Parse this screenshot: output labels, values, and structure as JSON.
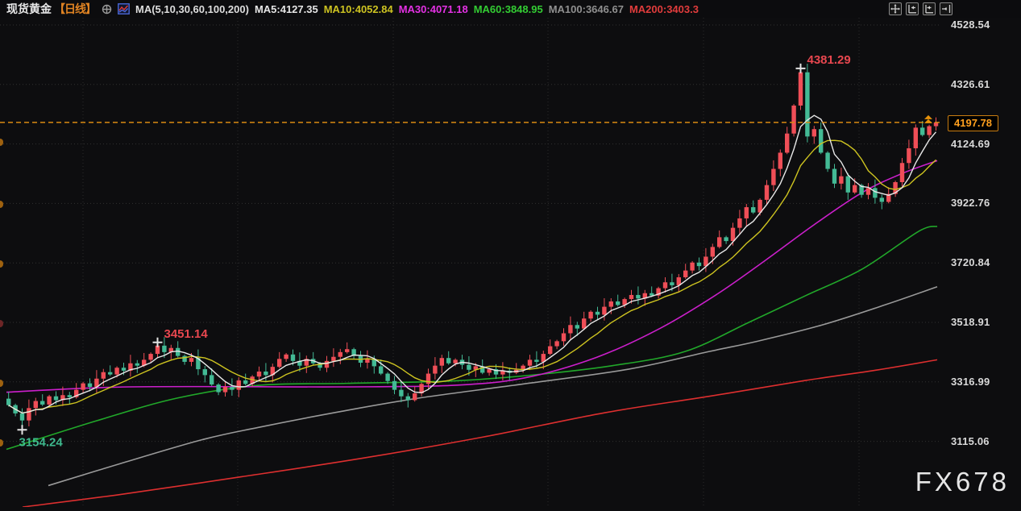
{
  "header": {
    "symbol": "现货黄金",
    "period": "【日线】",
    "ma_param_label": "MA(5,10,30,60,100,200)",
    "ma_labels": [
      {
        "text": "MA5:4127.35",
        "color": "#e6e6e6"
      },
      {
        "text": "MA10:4052.84",
        "color": "#cdc321"
      },
      {
        "text": "MA30:4071.18",
        "color": "#e431e4"
      },
      {
        "text": "MA60:3848.95",
        "color": "#33cc33"
      },
      {
        "text": "MA100:3646.67",
        "color": "#8f8f8f"
      },
      {
        "text": "MA200:3403.3",
        "color": "#e13c3c"
      }
    ]
  },
  "axis": {
    "ticks": [
      "4528.54",
      "4326.61",
      "4124.69",
      "3922.76",
      "3720.84",
      "3518.91",
      "3316.99",
      "3115.06"
    ]
  },
  "price_tag": {
    "value": "4197.78"
  },
  "watermark": "FX678",
  "chart_data": {
    "type": "candlestick",
    "title": "现货黄金 日线",
    "symbol": "现货黄金",
    "period": "日线",
    "up_color": "#ef4e57",
    "down_color": "#43ba95",
    "background": "#0d0d0f",
    "grid": true,
    "y_ticks": [
      4528.54,
      4326.61,
      4124.69,
      3922.76,
      3720.84,
      3518.91,
      3316.99,
      3115.06
    ],
    "current_price": 4197.78,
    "closes": [
      3238,
      3210,
      3186,
      3228,
      3252,
      3240,
      3268,
      3255,
      3272,
      3265,
      3290,
      3312,
      3300,
      3328,
      3350,
      3342,
      3365,
      3355,
      3380,
      3372,
      3392,
      3412,
      3440,
      3418,
      3432,
      3405,
      3385,
      3398,
      3360,
      3340,
      3308,
      3282,
      3300,
      3290,
      3322,
      3310,
      3335,
      3352,
      3340,
      3368,
      3395,
      3410,
      3388,
      3372,
      3395,
      3380,
      3365,
      3388,
      3402,
      3418,
      3428,
      3405,
      3382,
      3395,
      3370,
      3345,
      3320,
      3290,
      3268,
      3255,
      3278,
      3310,
      3345,
      3372,
      3398,
      3380,
      3392,
      3375,
      3358,
      3370,
      3348,
      3360,
      3342,
      3355,
      3348,
      3358,
      3372,
      3392,
      3385,
      3412,
      3438,
      3455,
      3482,
      3510,
      3498,
      3532,
      3555,
      3545,
      3572,
      3590,
      3578,
      3598,
      3612,
      3600,
      3618,
      3610,
      3635,
      3655,
      3645,
      3672,
      3695,
      3722,
      3710,
      3742,
      3775,
      3808,
      3795,
      3840,
      3872,
      3910,
      3892,
      3935,
      3985,
      4040,
      4095,
      4160,
      4255,
      4368,
      4150,
      4175,
      4095,
      4040,
      3990,
      4015,
      3960,
      3985,
      3952,
      3975,
      3942,
      3928,
      3955,
      3995,
      4060,
      4110,
      4180,
      4155,
      4185,
      4197.78
    ],
    "special_points": [
      {
        "index": 2,
        "type": "low",
        "value": 3154.24,
        "label": "3154.24",
        "label_color": "#3eb98e"
      },
      {
        "index": 22,
        "type": "high",
        "value": 3451.14,
        "label": "3451.14",
        "label_color": "#e8474f"
      },
      {
        "index": 117,
        "type": "high",
        "value": 4381.29,
        "label": "4381.29",
        "label_color": "#e8474f"
      }
    ],
    "moving_averages": [
      {
        "name": "MA5",
        "color": "#e8e8e8",
        "period": 5,
        "source": "sma"
      },
      {
        "name": "MA10",
        "color": "#cdc320",
        "period": 10,
        "source": "sma"
      },
      {
        "name": "MA30",
        "color": "#cb1fcb",
        "points": [
          [
            8,
            3282
          ],
          [
            160,
            3300
          ],
          [
            420,
            3300
          ],
          [
            560,
            3305
          ],
          [
            650,
            3330
          ],
          [
            740,
            3400
          ],
          [
            820,
            3500
          ],
          [
            890,
            3615
          ],
          [
            950,
            3730
          ],
          [
            1010,
            3850
          ],
          [
            1070,
            3960
          ],
          [
            1120,
            4025
          ],
          [
            1163,
            4068
          ]
        ]
      },
      {
        "name": "MA60",
        "color": "#21a82a",
        "points": [
          [
            8,
            3088
          ],
          [
            120,
            3185
          ],
          [
            220,
            3262
          ],
          [
            320,
            3305
          ],
          [
            430,
            3312
          ],
          [
            560,
            3320
          ],
          [
            660,
            3340
          ],
          [
            760,
            3372
          ],
          [
            850,
            3420
          ],
          [
            930,
            3520
          ],
          [
            1000,
            3610
          ],
          [
            1070,
            3700
          ],
          [
            1140,
            3828
          ],
          [
            1163,
            3845
          ]
        ]
      },
      {
        "name": "MA100",
        "color": "#9a9a9a",
        "points": [
          [
            60,
            2965
          ],
          [
            150,
            3040
          ],
          [
            250,
            3120
          ],
          [
            320,
            3162
          ],
          [
            420,
            3215
          ],
          [
            520,
            3262
          ],
          [
            650,
            3310
          ],
          [
            780,
            3360
          ],
          [
            880,
            3420
          ],
          [
            940,
            3455
          ],
          [
            1020,
            3510
          ],
          [
            1100,
            3580
          ],
          [
            1163,
            3640
          ]
        ]
      },
      {
        "name": "MA200",
        "color": "#dd2f2f",
        "points": [
          [
            28,
            2892
          ],
          [
            150,
            2935
          ],
          [
            300,
            2995
          ],
          [
            450,
            3058
          ],
          [
            600,
            3130
          ],
          [
            750,
            3212
          ],
          [
            880,
            3268
          ],
          [
            1000,
            3322
          ],
          [
            1090,
            3358
          ],
          [
            1163,
            3392
          ]
        ]
      }
    ],
    "ma_values": {
      "MA5": 4127.35,
      "MA10": 4052.84,
      "MA30": 4071.18,
      "MA60": 3848.95,
      "MA100": 3646.67,
      "MA200": 3403.3
    },
    "grid_vertical_x": [
      103,
      295,
      488,
      680,
      873,
      1066
    ]
  }
}
